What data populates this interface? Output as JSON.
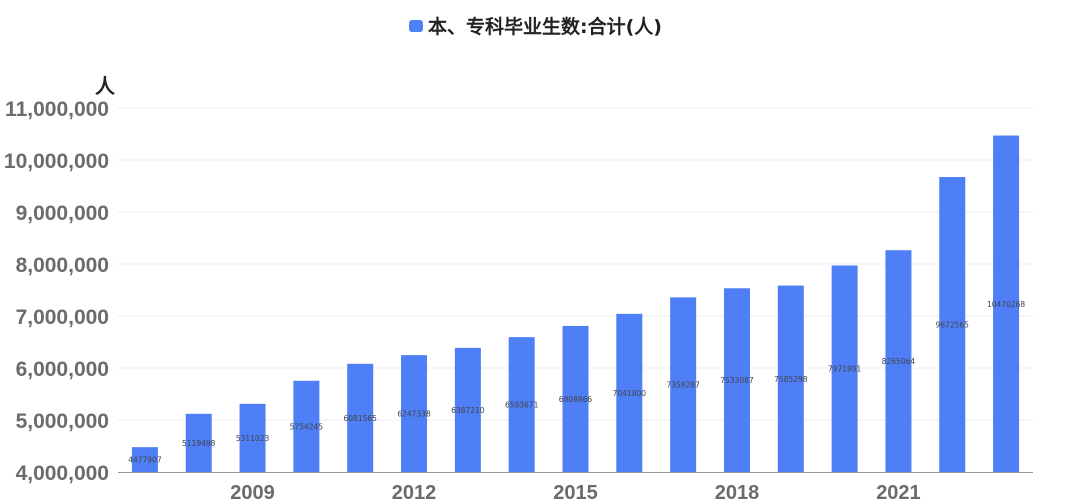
{
  "chart_data": {
    "type": "bar",
    "unit_label": "人",
    "legend": {
      "placement": "top-center",
      "entries": [
        "本、专科毕业生数:合计(人)"
      ]
    },
    "series": [
      {
        "name": "本、专科毕业生数:合计(人)",
        "color": "#4e7ff6",
        "values": [
          4477907,
          5119498,
          5311023,
          5754245,
          6081565,
          6247338,
          6387210,
          6593671,
          6808866,
          7041800,
          7358287,
          7533087,
          7585298,
          7971991,
          8265064,
          9672565,
          10470268
        ]
      }
    ],
    "categories": [
      "2007",
      "2008",
      "2009",
      "2010",
      "2011",
      "2012",
      "2013",
      "2014",
      "2015",
      "2016",
      "2017",
      "2018",
      "2019",
      "2020",
      "2021",
      "2022",
      "2023"
    ],
    "value_labels": [
      "4477907",
      "5119498",
      "5311023",
      "5754245",
      "6081565",
      "6247338",
      "6387210",
      "6593671",
      "6808866",
      "7041800",
      "7358287",
      "7533087",
      "7585298",
      "7971991",
      "8265064",
      "9672565",
      "10470268"
    ],
    "x_tick_labels": [
      {
        "index": 2,
        "label": "2009"
      },
      {
        "index": 5,
        "label": "2012"
      },
      {
        "index": 8,
        "label": "2015"
      },
      {
        "index": 11,
        "label": "2018"
      },
      {
        "index": 14,
        "label": "2021"
      }
    ],
    "y_tick_labels": [
      "4,000,000",
      "5,000,000",
      "6,000,000",
      "7,000,000",
      "8,000,000",
      "9,000,000",
      "10,000,000",
      "11,000,000"
    ],
    "y_ticks": [
      4000000,
      5000000,
      6000000,
      7000000,
      8000000,
      9000000,
      10000000,
      11000000
    ],
    "ylim": [
      4000000,
      11000000
    ],
    "grid": true
  }
}
